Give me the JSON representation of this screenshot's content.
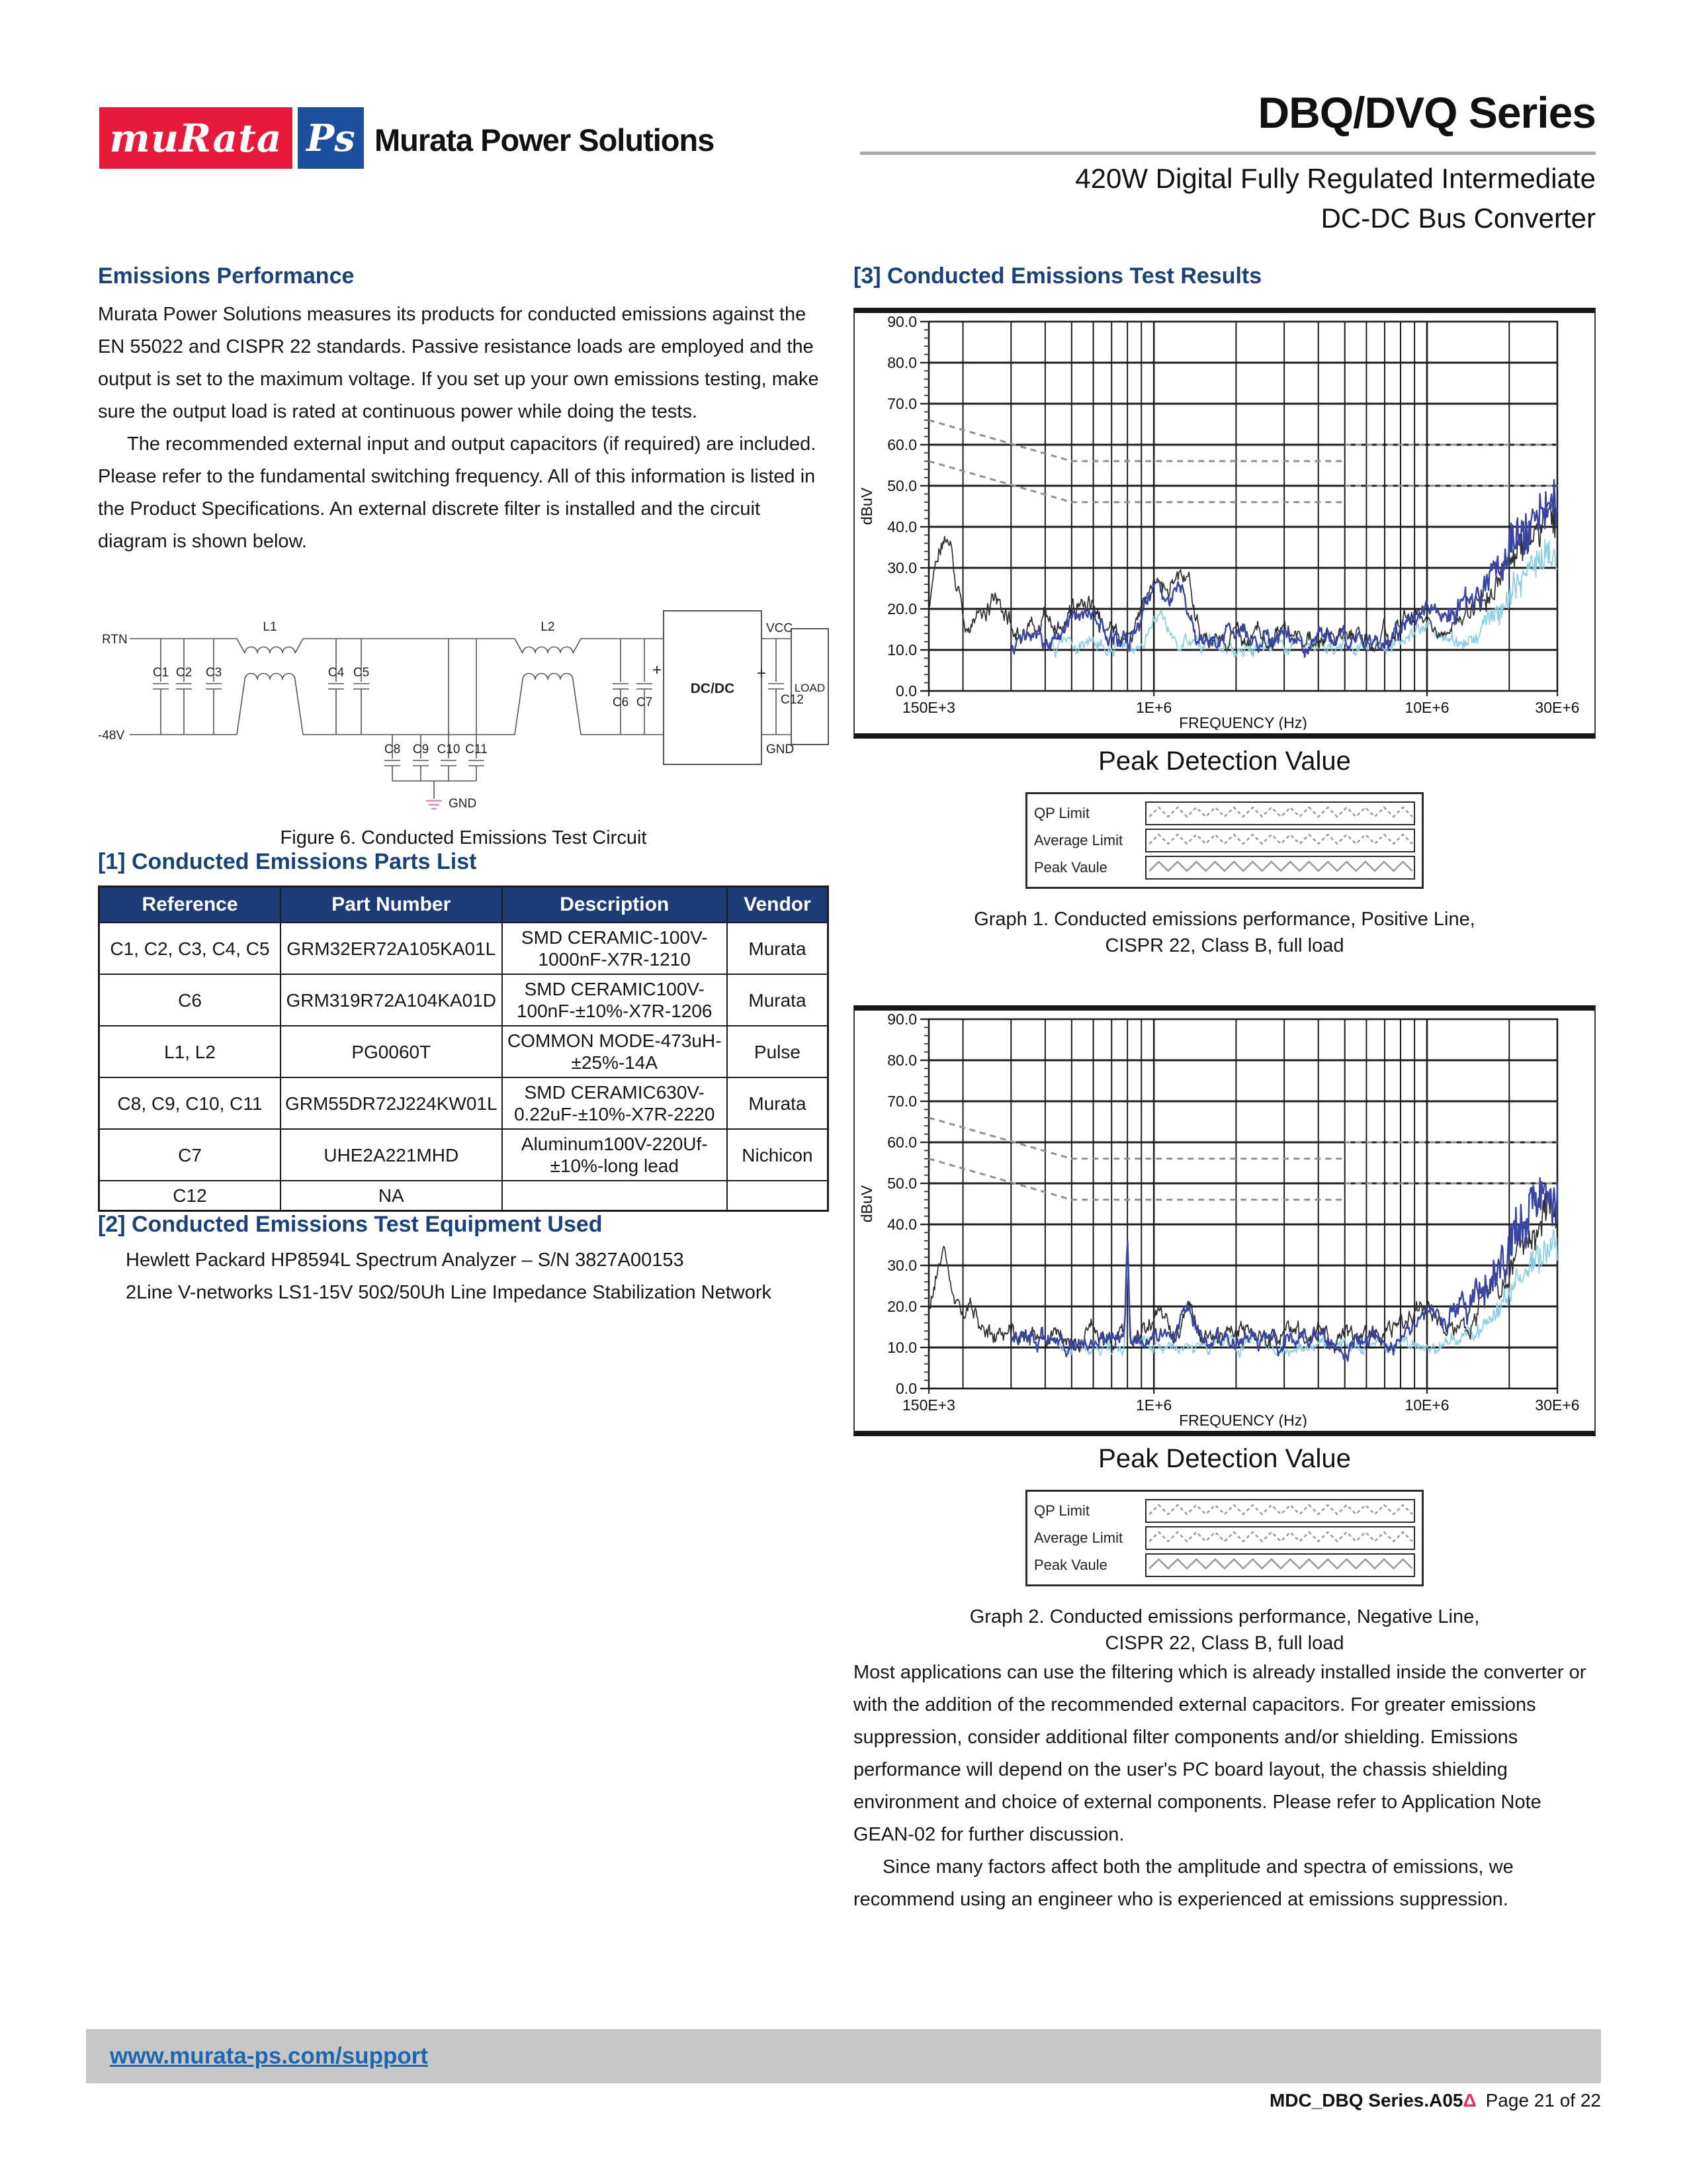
{
  "header": {
    "logo_murata": "muRata",
    "logo_ps": "Ps",
    "brand": "Murata Power Solutions",
    "series_title": "DBQ/DVQ Series",
    "subtitle_line1": "420W Digital Fully Regulated Intermediate",
    "subtitle_line2": "DC-DC Bus Converter"
  },
  "left": {
    "emissions_heading": "Emissions Performance",
    "para1": "Murata Power Solutions measures its products for conducted emissions against the EN 55022 and CISPR 22 standards. Passive resistance loads are employed and the output is set to the maximum voltage. If you set up your own emissions testing, make sure the output load is rated at continuous power while doing the tests.",
    "para2": "The recommended external input and output capacitors (if required) are included. Please refer to the fundamental switching frequency. All of this information is listed in the Product Specifications. An external discrete filter is installed and the circuit diagram is shown below.",
    "figure_caption": "Figure 6. Conducted Emissions Test Circuit",
    "circuit_labels": {
      "rtn": "RTN",
      "neg48": "-48V",
      "c1": "C1",
      "c2": "C2",
      "c3": "C3",
      "l1": "L1",
      "c4": "C4",
      "c5": "C5",
      "c8": "C8",
      "c9": "C9",
      "c10": "C10",
      "c11": "C11",
      "gnd_left": "GND",
      "l2": "L2",
      "c6": "C6",
      "c7": "C7",
      "plus1": "+",
      "dcdc": "DC/DC",
      "vcc": "VCC",
      "gnd_right": "GND",
      "plus2": "+",
      "c12": "C12",
      "load": "LOAD"
    },
    "parts_heading": "[1] Conducted Emissions Parts List",
    "parts_table": {
      "headers": [
        "Reference",
        "Part Number",
        "Description",
        "Vendor"
      ],
      "rows": [
        [
          "C1, C2, C3, C4, C5",
          "GRM32ER72A105KA01L",
          "SMD CERAMIC-100V-1000nF-X7R-1210",
          "Murata"
        ],
        [
          "C6",
          "GRM319R72A104KA01D",
          "SMD CERAMIC100V-100nF-±10%-X7R-1206",
          "Murata"
        ],
        [
          "L1, L2",
          "PG0060T",
          "COMMON MODE-473uH-±25%-14A",
          "Pulse"
        ],
        [
          "C8, C9, C10, C11",
          "GRM55DR72J224KW01L",
          "SMD CERAMIC630V-0.22uF-±10%-X7R-2220",
          "Murata"
        ],
        [
          "C7",
          "UHE2A221MHD",
          "Aluminum100V-220Uf-±10%-long lead",
          "Nichicon"
        ],
        [
          "C12",
          "NA",
          "",
          ""
        ]
      ]
    },
    "equipment_heading": "[2] Conducted Emissions Test Equipment Used",
    "equipment_lines": [
      "Hewlett Packard HP8594L Spectrum Analyzer – S/N 3827A00153",
      "2Line V-networks LS1-15V 50Ω/50Uh Line Impedance Stabilization Network"
    ]
  },
  "right": {
    "results_heading": "[3] Conducted Emissions Test Results",
    "graphs": [
      {
        "title": "Peak Detection Value",
        "caption_line1": "Graph 1. Conducted emissions performance, Positive Line,",
        "caption_line2": "CISPR 22, Class B, full load"
      },
      {
        "title": "Peak Detection Value",
        "caption_line1": "Graph 2. Conducted emissions performance, Negative Line,",
        "caption_line2": "CISPR 22, Class B, full load"
      }
    ],
    "legend": {
      "items": [
        "QP Limit",
        "Average Limit",
        "Peak Vaule"
      ],
      "styles": [
        "dashed",
        "dashed",
        "solid"
      ]
    },
    "para1": "Most applications can use the filtering which is already installed inside the converter or with the addition of the recommended external capacitors. For greater emissions suppression, consider additional filter components and/or shielding. Emissions performance will depend on the user's PC board layout, the chassis shielding environment and choice of external components. Please refer to Application Note GEAN-02 for further discussion.",
    "para2": "Since many factors affect both the amplitude and spectra of emissions, we recommend using an engineer who is experienced at emissions suppression."
  },
  "chart_data": [
    {
      "type": "line",
      "title": "Peak Detection Value",
      "caption": "Graph 1. Conducted emissions performance, Positive Line, CISPR 22, Class B, full load",
      "xlabel": "FREQUENCY (Hz)",
      "ylabel": "dBuV",
      "x_scale": "log",
      "x_range_hz": [
        150000,
        30000000
      ],
      "ylim": [
        0,
        90
      ],
      "y_tick_step": 10,
      "x_tick_labels": [
        {
          "hz": 150000,
          "label": "150E+3"
        },
        {
          "hz": 1000000,
          "label": "1E+6"
        },
        {
          "hz": 10000000,
          "label": "10E+6"
        },
        {
          "hz": 30000000,
          "label": "30E+6"
        }
      ],
      "colors": {
        "grid": "#1c1c1c",
        "limit": "#8f8f8f",
        "black": "#303030",
        "blue": "#3a44a3",
        "cyan": "#8ccfe4",
        "axis_text": "#111111"
      },
      "limit_lines": [
        {
          "name": "QP Limit",
          "style": "dashed",
          "segments": [
            [
              [
                150000,
                66
              ],
              [
                500000,
                56
              ],
              [
                5000000,
                56
              ]
            ],
            [
              [
                5000000,
                60
              ],
              [
                30000000,
                60
              ]
            ]
          ]
        },
        {
          "name": "Average Limit",
          "style": "dashed",
          "segments": [
            [
              [
                150000,
                56
              ],
              [
                500000,
                46
              ],
              [
                5000000,
                46
              ]
            ],
            [
              [
                5000000,
                50
              ],
              [
                30000000,
                50
              ]
            ]
          ]
        }
      ],
      "traces": [
        {
          "name": "peak-trace-cyan",
          "color": "cyan",
          "floor": 10.8,
          "walk": 1.6,
          "seed": 11,
          "start_hz": 420000,
          "peaks": [
            [
              1050000,
              8,
              0.03
            ],
            [
              9500000,
              5,
              0.05
            ],
            [
              21000000,
              10,
              0.1
            ],
            [
              29500000,
              18,
              0.09
            ]
          ],
          "end_jitter": {
            "from_hz": 12000000,
            "amp": 3
          }
        },
        {
          "name": "peak-trace-black",
          "color": "black",
          "floor": 13.2,
          "walk": 2.1,
          "seed": 3,
          "peaks": [
            [
              172000,
              23,
              0.04
            ],
            [
              265000,
              9,
              0.035
            ],
            [
              420000,
              5,
              0.05
            ],
            [
              560000,
              8,
              0.04
            ],
            [
              1020000,
              15,
              0.035
            ],
            [
              1220000,
              13,
              0.025
            ],
            [
              1350000,
              10,
              0.02
            ],
            [
              9300000,
              7,
              0.05
            ],
            [
              20000000,
              13,
              0.1
            ],
            [
              29300000,
              26,
              0.08
            ]
          ],
          "end_jitter": {
            "from_hz": 13000000,
            "amp": 3
          }
        },
        {
          "name": "peak-trace-blue",
          "color": "blue",
          "floor": 12.6,
          "walk": 2.0,
          "seed": 8,
          "start_hz": 300000,
          "peaks": [
            [
              560000,
              6,
              0.05
            ],
            [
              1020000,
              13,
              0.035
            ],
            [
              1250000,
              10,
              0.03
            ],
            [
              9500000,
              6,
              0.06
            ],
            [
              15000000,
              7,
              0.1
            ],
            [
              21000000,
              15,
              0.09
            ],
            [
              29400000,
              27,
              0.09
            ]
          ],
          "end_jitter": {
            "from_hz": 12000000,
            "amp": 5
          }
        }
      ]
    },
    {
      "type": "line",
      "title": "Peak Detection Value",
      "caption": "Graph 2. Conducted emissions performance, Negative Line, CISPR 22, Class B, full load",
      "xlabel": "FREQUENCY (Hz)",
      "ylabel": "dBuV",
      "x_scale": "log",
      "x_range_hz": [
        150000,
        30000000
      ],
      "ylim": [
        0,
        90
      ],
      "y_tick_step": 10,
      "x_tick_labels": [
        {
          "hz": 150000,
          "label": "150E+3"
        },
        {
          "hz": 1000000,
          "label": "1E+6"
        },
        {
          "hz": 10000000,
          "label": "10E+6"
        },
        {
          "hz": 30000000,
          "label": "30E+6"
        }
      ],
      "colors": {
        "grid": "#1c1c1c",
        "limit": "#8f8f8f",
        "black": "#303030",
        "blue": "#3a44a3",
        "cyan": "#8ccfe4",
        "axis_text": "#111111"
      },
      "limit_lines": [
        {
          "name": "QP Limit",
          "style": "dashed",
          "segments": [
            [
              [
                150000,
                66
              ],
              [
                500000,
                56
              ],
              [
                5000000,
                56
              ]
            ],
            [
              [
                5000000,
                60
              ],
              [
                30000000,
                60
              ]
            ]
          ]
        },
        {
          "name": "Average Limit",
          "style": "dashed",
          "segments": [
            [
              [
                150000,
                56
              ],
              [
                500000,
                46
              ],
              [
                5000000,
                46
              ]
            ],
            [
              [
                5000000,
                50
              ],
              [
                30000000,
                50
              ]
            ]
          ]
        }
      ],
      "traces": [
        {
          "name": "peak-trace-cyan",
          "color": "cyan",
          "floor": 10.2,
          "walk": 1.5,
          "seed": 21,
          "start_hz": 450000,
          "peaks": [
            [
              800000,
              20,
              0.005
            ],
            [
              21000000,
              9,
              0.1
            ],
            [
              29500000,
              20,
              0.09
            ]
          ],
          "end_jitter": {
            "from_hz": 12000000,
            "amp": 3
          }
        },
        {
          "name": "peak-trace-black",
          "color": "black",
          "floor": 12.4,
          "walk": 2.0,
          "seed": 5,
          "peaks": [
            [
              168000,
              21,
              0.035
            ],
            [
              215000,
              8,
              0.03
            ],
            [
              800000,
              23,
              0.005
            ],
            [
              1050000,
              7,
              0.03
            ],
            [
              1350000,
              8,
              0.02
            ],
            [
              9500000,
              7,
              0.05
            ],
            [
              20000000,
              12,
              0.1
            ],
            [
              29300000,
              28,
              0.08
            ]
          ],
          "end_jitter": {
            "from_hz": 13000000,
            "amp": 3
          }
        },
        {
          "name": "peak-trace-blue",
          "color": "blue",
          "floor": 11.8,
          "walk": 1.9,
          "seed": 14,
          "start_hz": 300000,
          "peaks": [
            [
              800000,
              23,
              0.005
            ],
            [
              1300000,
              7,
              0.03
            ],
            [
              9800000,
              6,
              0.05
            ],
            [
              15000000,
              6,
              0.1
            ],
            [
              21000000,
              14,
              0.09
            ],
            [
              29400000,
              31,
              0.09
            ]
          ],
          "end_jitter": {
            "from_hz": 12000000,
            "amp": 5.5
          }
        }
      ]
    }
  ],
  "footer": {
    "link": "www.murata-ps.com/support",
    "doc_ref": "MDC_DBQ Series.A05",
    "delta": "Δ",
    "page": "Page 21 of 22"
  }
}
